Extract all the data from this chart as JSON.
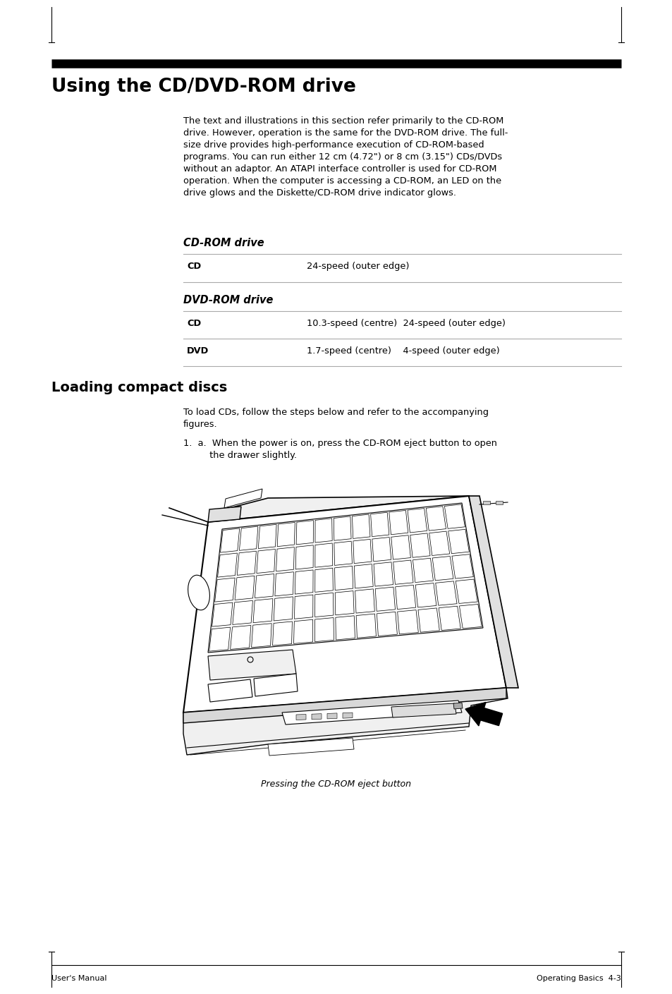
{
  "page_bg": "#ffffff",
  "section_title": "Using the CD/DVD-ROM drive",
  "body_text_1": "The text and illustrations in this section refer primarily to the CD-ROM\ndrive. However, operation is the same for the DVD-ROM drive. The full-\nsize drive provides high-performance execution of CD-ROM-based\nprograms. You can run either 12 cm (4.72\") or 8 cm (3.15\") CDs/DVDs\nwithout an adaptor. An ATAPI interface controller is used for CD-ROM\noperation. When the computer is accessing a CD-ROM, an LED on the\ndrive glows and the Diskette/CD-ROM drive indicator glows.",
  "cd_rom_title": "CD-ROM drive",
  "table1_row1_label": "CD",
  "table1_row1_value": "24-speed (outer edge)",
  "dvd_rom_title": "DVD-ROM drive",
  "table2_row1_label": "CD",
  "table2_row1_value": "10.3-speed (centre)  24-speed (outer edge)",
  "table2_row2_label": "DVD",
  "table2_row2_value": "1.7-speed (centre)    4-speed (outer edge)",
  "loading_title": "Loading compact discs",
  "loading_body": "To load CDs, follow the steps below and refer to the accompanying\nfigures.",
  "step_text": "1.  a.  When the power is on, press the CD-ROM eject button to open\n         the drawer slightly.",
  "caption": "Pressing the CD-ROM eject button",
  "footer_left": "User's Manual",
  "footer_right": "Operating Basics  4-3"
}
